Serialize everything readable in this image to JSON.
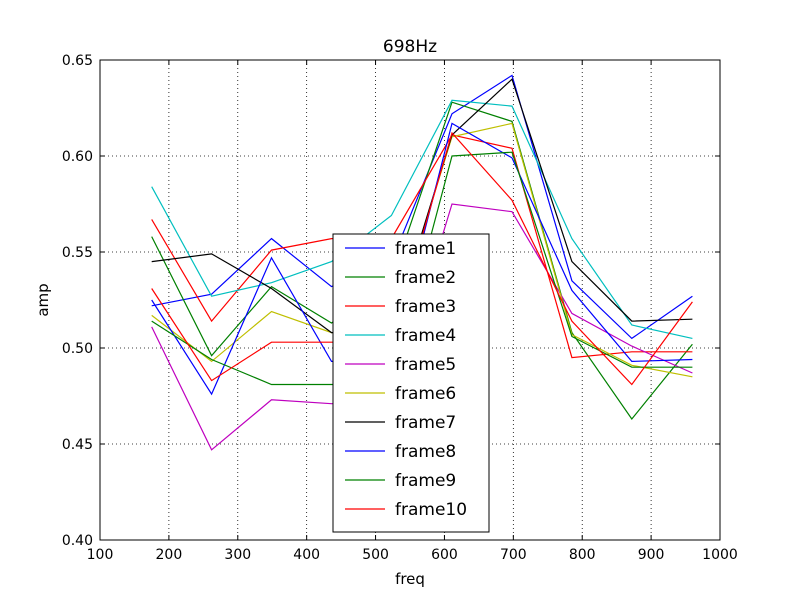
{
  "chart_data": {
    "type": "line",
    "title": "698Hz",
    "xlabel": "freq",
    "ylabel": "amp",
    "xlim": [
      100,
      1000
    ],
    "ylim": [
      0.4,
      0.65
    ],
    "xticks": [
      "100",
      "200",
      "300",
      "400",
      "500",
      "600",
      "700",
      "800",
      "900",
      "1000"
    ],
    "yticks": [
      "0.40",
      "0.45",
      "0.50",
      "0.55",
      "0.60",
      "0.65"
    ],
    "grid": true,
    "legend_position": "lower-center",
    "x": [
      175,
      262,
      349,
      436,
      523,
      611,
      698,
      785,
      872,
      960
    ],
    "series": [
      {
        "name": "frame1",
        "color": "#0000ff",
        "values": [
          0.522,
          0.528,
          0.557,
          0.532,
          0.545,
          0.622,
          0.642,
          0.535,
          0.505,
          0.527
        ]
      },
      {
        "name": "frame2",
        "color": "#008000",
        "values": [
          0.558,
          0.496,
          0.532,
          0.513,
          0.535,
          0.628,
          0.618,
          0.508,
          0.463,
          0.502
        ]
      },
      {
        "name": "frame3",
        "color": "#ff0000",
        "values": [
          0.567,
          0.514,
          0.551,
          0.557,
          0.557,
          0.611,
          0.604,
          0.495,
          0.498,
          0.498
        ]
      },
      {
        "name": "frame4",
        "color": "#00bfbf",
        "values": [
          0.584,
          0.527,
          0.534,
          0.545,
          0.569,
          0.629,
          0.626,
          0.557,
          0.512,
          0.505
        ]
      },
      {
        "name": "frame5",
        "color": "#bf00bf",
        "values": [
          0.511,
          0.447,
          0.473,
          0.471,
          0.471,
          0.575,
          0.571,
          0.518,
          0.501,
          0.487
        ]
      },
      {
        "name": "frame6",
        "color": "#bfbf00",
        "values": [
          0.517,
          0.493,
          0.519,
          0.508,
          0.508,
          0.61,
          0.617,
          0.507,
          0.491,
          0.485
        ]
      },
      {
        "name": "frame7",
        "color": "#000000",
        "values": [
          0.545,
          0.549,
          0.531,
          0.508,
          0.508,
          0.611,
          0.64,
          0.545,
          0.514,
          0.515
        ]
      },
      {
        "name": "frame8",
        "color": "#0000ff",
        "values": [
          0.525,
          0.476,
          0.547,
          0.493,
          0.493,
          0.617,
          0.599,
          0.53,
          0.493,
          0.494
        ]
      },
      {
        "name": "frame9",
        "color": "#008000",
        "values": [
          0.514,
          0.494,
          0.481,
          0.481,
          0.481,
          0.6,
          0.602,
          0.506,
          0.49,
          0.49
        ]
      },
      {
        "name": "frame10",
        "color": "#ff0000",
        "values": [
          0.531,
          0.483,
          0.503,
          0.503,
          0.503,
          0.612,
          0.577,
          0.514,
          0.481,
          0.524
        ]
      }
    ]
  }
}
